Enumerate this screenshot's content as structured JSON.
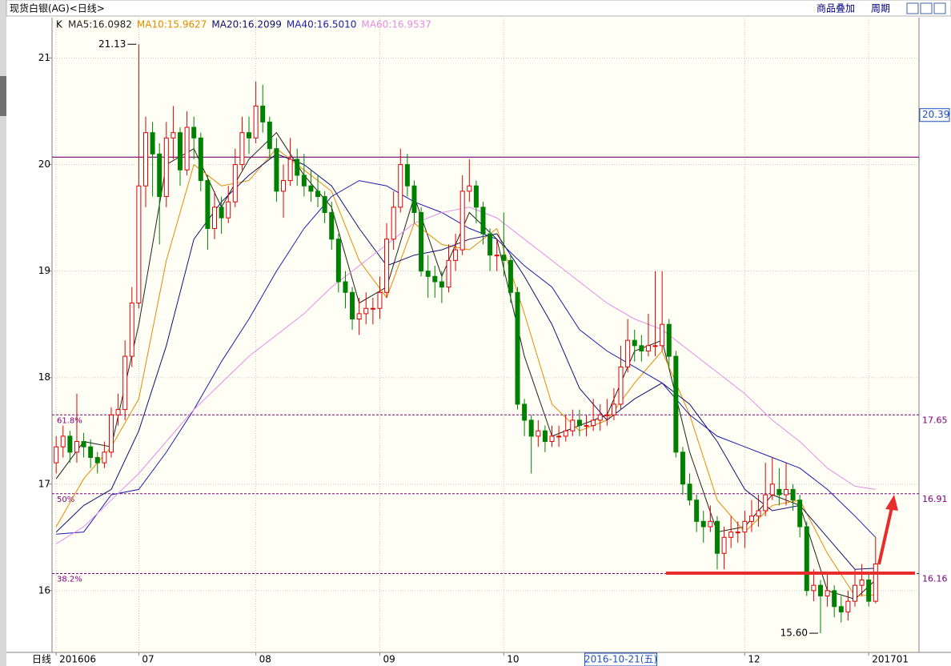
{
  "header": {
    "title": "现货白银(AG)<日线>",
    "buttons": [
      "商品叠加",
      "周期"
    ]
  },
  "chart_data": {
    "type": "candlestick",
    "legend_prefix": "K",
    "axis_label": "日线",
    "candles": [
      [
        17.2,
        17.45,
        17.1,
        17.35
      ],
      [
        17.35,
        17.55,
        17.25,
        17.45
      ],
      [
        17.45,
        17.5,
        17.2,
        17.3
      ],
      [
        17.3,
        17.85,
        17.2,
        17.4
      ],
      [
        17.4,
        17.48,
        17.25,
        17.35
      ],
      [
        17.35,
        17.42,
        17.15,
        17.25
      ],
      [
        17.25,
        17.3,
        17.1,
        17.2
      ],
      [
        17.2,
        17.4,
        17.15,
        17.3
      ],
      [
        17.3,
        17.72,
        17.25,
        17.65
      ],
      [
        17.65,
        17.85,
        17.55,
        17.7
      ],
      [
        17.7,
        18.35,
        17.6,
        18.2
      ],
      [
        18.2,
        18.85,
        18.1,
        18.7
      ],
      [
        18.7,
        21.13,
        18.65,
        19.8
      ],
      [
        19.8,
        20.45,
        19.6,
        20.3
      ],
      [
        20.3,
        20.4,
        19.7,
        20.1
      ],
      [
        20.1,
        20.2,
        19.25,
        19.7
      ],
      [
        19.7,
        20.4,
        19.6,
        20.25
      ],
      [
        20.25,
        20.55,
        20.05,
        20.3
      ],
      [
        20.3,
        20.35,
        19.8,
        19.95
      ],
      [
        19.95,
        20.5,
        19.9,
        20.35
      ],
      [
        20.35,
        20.45,
        20.05,
        20.25
      ],
      [
        20.25,
        20.3,
        19.75,
        19.85
      ],
      [
        19.85,
        19.9,
        19.2,
        19.4
      ],
      [
        19.4,
        19.75,
        19.3,
        19.6
      ],
      [
        19.6,
        19.7,
        19.35,
        19.5
      ],
      [
        19.5,
        19.8,
        19.45,
        19.65
      ],
      [
        19.65,
        20.15,
        19.6,
        20.0
      ],
      [
        20.0,
        20.45,
        19.95,
        20.3
      ],
      [
        20.3,
        20.45,
        20.1,
        20.25
      ],
      [
        20.25,
        20.78,
        20.2,
        20.55
      ],
      [
        20.55,
        20.75,
        20.3,
        20.4
      ],
      [
        20.4,
        20.45,
        20.05,
        20.15
      ],
      [
        20.15,
        20.25,
        19.65,
        19.75
      ],
      [
        19.75,
        20.0,
        19.5,
        19.85
      ],
      [
        19.85,
        20.25,
        19.8,
        20.05
      ],
      [
        20.05,
        20.15,
        19.8,
        19.9
      ],
      [
        19.9,
        20.1,
        19.7,
        19.8
      ],
      [
        19.8,
        19.95,
        19.65,
        19.75
      ],
      [
        19.75,
        19.9,
        19.6,
        19.7
      ],
      [
        19.7,
        19.75,
        19.45,
        19.55
      ],
      [
        19.55,
        19.65,
        19.2,
        19.3
      ],
      [
        19.3,
        19.35,
        18.8,
        18.9
      ],
      [
        18.9,
        19.0,
        18.65,
        18.8
      ],
      [
        18.8,
        18.85,
        18.45,
        18.55
      ],
      [
        18.55,
        18.75,
        18.4,
        18.6
      ],
      [
        18.6,
        18.8,
        18.5,
        18.65
      ],
      [
        18.65,
        18.75,
        18.5,
        18.65
      ],
      [
        18.65,
        18.95,
        18.55,
        18.8
      ],
      [
        18.8,
        19.45,
        18.75,
        19.3
      ],
      [
        19.3,
        19.75,
        19.2,
        19.6
      ],
      [
        19.6,
        20.15,
        19.55,
        20.0
      ],
      [
        20.0,
        20.1,
        19.7,
        19.8
      ],
      [
        19.8,
        19.85,
        19.45,
        19.55
      ],
      [
        19.55,
        19.6,
        18.95,
        19.0
      ],
      [
        19.0,
        19.15,
        18.75,
        18.95
      ],
      [
        18.95,
        19.05,
        18.75,
        18.9
      ],
      [
        18.9,
        19.0,
        18.7,
        18.85
      ],
      [
        18.85,
        19.25,
        18.8,
        19.1
      ],
      [
        19.1,
        19.35,
        19.0,
        19.2
      ],
      [
        19.2,
        19.9,
        19.15,
        19.75
      ],
      [
        19.75,
        20.05,
        19.65,
        19.8
      ],
      [
        19.8,
        19.85,
        19.45,
        19.6
      ],
      [
        19.6,
        19.65,
        19.25,
        19.35
      ],
      [
        19.35,
        19.4,
        19.0,
        19.15
      ],
      [
        19.15,
        19.3,
        19.0,
        19.15
      ],
      [
        19.15,
        19.55,
        18.95,
        19.1
      ],
      [
        19.1,
        19.15,
        18.7,
        18.8
      ],
      [
        18.8,
        18.85,
        17.7,
        17.75
      ],
      [
        17.75,
        17.8,
        17.45,
        17.6
      ],
      [
        17.6,
        17.65,
        17.1,
        17.45
      ],
      [
        17.45,
        17.6,
        17.35,
        17.5
      ],
      [
        17.5,
        17.55,
        17.3,
        17.4
      ],
      [
        17.4,
        17.55,
        17.35,
        17.45
      ],
      [
        17.45,
        17.55,
        17.35,
        17.45
      ],
      [
        17.45,
        17.65,
        17.4,
        17.5
      ],
      [
        17.5,
        17.7,
        17.45,
        17.6
      ],
      [
        17.6,
        17.7,
        17.45,
        17.55
      ],
      [
        17.55,
        17.65,
        17.45,
        17.55
      ],
      [
        17.55,
        17.8,
        17.5,
        17.6
      ],
      [
        17.6,
        17.75,
        17.5,
        17.65
      ],
      [
        17.65,
        17.8,
        17.55,
        17.65
      ],
      [
        17.65,
        17.9,
        17.6,
        17.75
      ],
      [
        17.75,
        18.3,
        17.7,
        18.1
      ],
      [
        18.1,
        18.55,
        18.05,
        18.35
      ],
      [
        18.35,
        18.45,
        18.15,
        18.3
      ],
      [
        18.3,
        18.4,
        18.15,
        18.25
      ],
      [
        18.25,
        18.6,
        18.2,
        18.3
      ],
      [
        18.3,
        19.0,
        18.2,
        18.3
      ],
      [
        18.3,
        19.0,
        18.25,
        18.5
      ],
      [
        18.5,
        18.55,
        18.1,
        18.2
      ],
      [
        18.2,
        18.25,
        17.25,
        17.3
      ],
      [
        17.3,
        17.35,
        16.9,
        17.0
      ],
      [
        17.0,
        17.1,
        16.8,
        16.85
      ],
      [
        16.85,
        16.9,
        16.55,
        16.65
      ],
      [
        16.65,
        16.75,
        16.45,
        16.6
      ],
      [
        16.6,
        16.8,
        16.55,
        16.65
      ],
      [
        16.65,
        16.7,
        16.2,
        16.35
      ],
      [
        16.35,
        16.6,
        16.2,
        16.5
      ],
      [
        16.5,
        16.7,
        16.4,
        16.55
      ],
      [
        16.55,
        16.65,
        16.45,
        16.55
      ],
      [
        16.55,
        16.75,
        16.4,
        16.65
      ],
      [
        16.65,
        16.85,
        16.55,
        16.7
      ],
      [
        16.7,
        16.9,
        16.6,
        16.75
      ],
      [
        16.75,
        17.2,
        16.7,
        16.9
      ],
      [
        16.9,
        17.25,
        16.85,
        17.0
      ],
      [
        16.95,
        17.15,
        16.8,
        16.9
      ],
      [
        16.9,
        17.2,
        16.8,
        16.95
      ],
      [
        16.95,
        17.0,
        16.75,
        16.85
      ],
      [
        16.85,
        16.9,
        16.5,
        16.6
      ],
      [
        16.6,
        16.65,
        15.95,
        16.0
      ],
      [
        16.0,
        16.2,
        15.9,
        16.05
      ],
      [
        16.05,
        16.1,
        15.6,
        15.95
      ],
      [
        15.95,
        16.15,
        15.85,
        16.0
      ],
      [
        16.0,
        16.05,
        15.75,
        15.85
      ],
      [
        15.85,
        15.95,
        15.7,
        15.8
      ],
      [
        15.8,
        16.0,
        15.72,
        15.9
      ],
      [
        15.9,
        16.2,
        15.85,
        16.05
      ],
      [
        16.05,
        16.25,
        15.95,
        16.1
      ],
      [
        16.1,
        16.15,
        15.85,
        15.9
      ],
      [
        15.9,
        16.5,
        15.88,
        16.25
      ]
    ],
    "ma_series": [
      {
        "name": "MA5:16.0982",
        "color": "#202020",
        "x": [
          0,
          4,
          8,
          12,
          16,
          20,
          24,
          28,
          32,
          36,
          40,
          44,
          48,
          52,
          56,
          60,
          64,
          68,
          72,
          76,
          80,
          84,
          88,
          92,
          96,
          100,
          104,
          108,
          112,
          116,
          119
        ],
        "values": [
          17.05,
          17.4,
          17.35,
          18.5,
          20.0,
          20.15,
          19.6,
          20.05,
          20.3,
          19.9,
          19.6,
          18.7,
          18.85,
          19.7,
          18.95,
          19.55,
          19.3,
          18.2,
          17.45,
          17.55,
          17.65,
          18.25,
          18.35,
          17.3,
          16.55,
          16.6,
          16.9,
          16.8,
          16.0,
          15.92,
          16.1
        ]
      },
      {
        "name": "MA10:15.9627",
        "color": "#e68a00",
        "x": [
          0,
          4,
          8,
          12,
          16,
          20,
          24,
          28,
          32,
          36,
          40,
          44,
          48,
          52,
          56,
          60,
          64,
          68,
          72,
          76,
          80,
          84,
          88,
          92,
          96,
          100,
          104,
          108,
          112,
          116,
          119
        ],
        "values": [
          16.6,
          17.05,
          17.35,
          17.8,
          19.1,
          20.0,
          19.8,
          19.85,
          20.15,
          19.95,
          19.75,
          19.1,
          18.75,
          19.45,
          19.25,
          19.2,
          19.4,
          18.6,
          17.75,
          17.5,
          17.6,
          17.95,
          18.25,
          17.65,
          16.85,
          16.55,
          16.8,
          16.85,
          16.35,
          15.95,
          15.96
        ]
      },
      {
        "name": "MA20:16.2099",
        "color": "#101070",
        "x": [
          0,
          4,
          8,
          12,
          16,
          20,
          24,
          28,
          32,
          36,
          40,
          44,
          48,
          52,
          56,
          60,
          64,
          68,
          72,
          76,
          80,
          84,
          88,
          92,
          96,
          100,
          104,
          108,
          112,
          116,
          119
        ],
        "values": [
          16.55,
          16.8,
          16.95,
          17.5,
          18.3,
          19.3,
          19.65,
          19.9,
          20.1,
          20.0,
          19.8,
          19.4,
          19.05,
          19.15,
          19.2,
          19.3,
          19.35,
          18.95,
          18.5,
          17.9,
          17.6,
          17.8,
          17.95,
          17.75,
          17.4,
          16.95,
          16.75,
          16.8,
          16.5,
          16.2,
          16.21
        ]
      },
      {
        "name": "MA40:16.5010",
        "color": "#1c1cb0",
        "x": [
          0,
          4,
          8,
          12,
          16,
          20,
          24,
          28,
          32,
          36,
          40,
          44,
          48,
          52,
          56,
          60,
          64,
          68,
          72,
          76,
          80,
          84,
          88,
          92,
          96,
          100,
          104,
          108,
          112,
          116,
          119
        ],
        "values": [
          16.53,
          16.55,
          16.9,
          16.95,
          17.3,
          17.7,
          18.15,
          18.55,
          19.0,
          19.4,
          19.7,
          19.85,
          19.8,
          19.65,
          19.55,
          19.4,
          19.3,
          19.05,
          18.85,
          18.45,
          18.25,
          18.1,
          17.95,
          17.65,
          17.45,
          17.35,
          17.25,
          17.15,
          16.95,
          16.7,
          16.5
        ]
      },
      {
        "name": "MA60:16.9537",
        "color": "#e48ce8",
        "x": [
          0,
          4,
          8,
          12,
          16,
          20,
          24,
          28,
          32,
          36,
          40,
          44,
          48,
          52,
          56,
          60,
          64,
          68,
          72,
          76,
          80,
          84,
          88,
          92,
          96,
          100,
          104,
          108,
          112,
          116,
          119
        ],
        "values": [
          16.44,
          16.6,
          16.85,
          17.1,
          17.4,
          17.7,
          17.95,
          18.2,
          18.4,
          18.6,
          18.85,
          19.05,
          19.25,
          19.45,
          19.55,
          19.6,
          19.5,
          19.3,
          19.1,
          18.9,
          18.7,
          18.55,
          18.45,
          18.25,
          18.05,
          17.85,
          17.6,
          17.4,
          17.15,
          16.98,
          16.95
        ]
      }
    ],
    "up_color": "#e00000",
    "down_color": "#008000",
    "xlim": [
      -0.6,
      125.3
    ],
    "ylim": [
      15.42,
      21.38
    ],
    "yticks": [
      16,
      17,
      18,
      19,
      20,
      21
    ],
    "grid": true,
    "xlabels": [
      {
        "index": 0,
        "label": "201606"
      },
      {
        "index": 12,
        "label": "07"
      },
      {
        "index": 29,
        "label": "08"
      },
      {
        "index": 47,
        "label": "09"
      },
      {
        "index": 65,
        "label": "10"
      },
      {
        "index": 100,
        "label": "12"
      },
      {
        "index": 118,
        "label": "201701"
      }
    ],
    "cursor_label": {
      "index": 82,
      "label": "2016-10-21(五)"
    },
    "hline": 20.07,
    "price_tag": {
      "value": 20.39,
      "label": "20.39"
    },
    "fib_levels": [
      {
        "label": "61.8%",
        "value": 17.65
      },
      {
        "label": "50%",
        "value": 16.91
      },
      {
        "label": "38.2%",
        "value": 16.16
      }
    ],
    "annotations": [
      {
        "label": "21.13",
        "index": 12,
        "value": 21.13
      },
      {
        "label": "15.60",
        "index": 111,
        "value": 15.6
      }
    ]
  }
}
